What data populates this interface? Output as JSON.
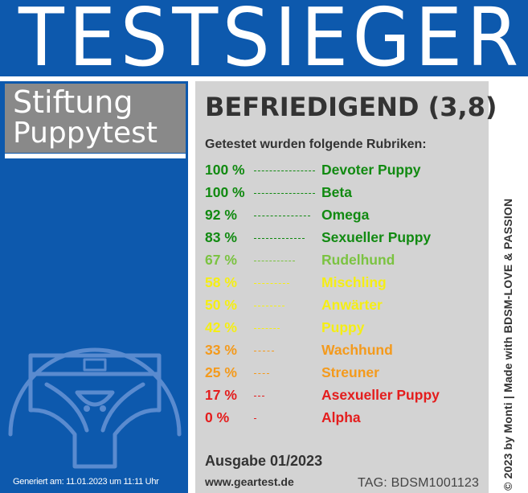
{
  "banner": {
    "title": "TESTSIEGER"
  },
  "brand": {
    "line1": "Stiftung",
    "line2": "Puppytest"
  },
  "footer_left": {
    "generated": "Generiert am: 11.01.2023 um 11:11 Uhr"
  },
  "result": {
    "rating": "BEFRIEDIGEND (3,8)",
    "subtitle": "Getestet wurden folgende Rubriken:",
    "rows": [
      {
        "percent_label": "100 %",
        "category": "Devoter Puppy",
        "value": 100,
        "color": "#118a11"
      },
      {
        "percent_label": "100 %",
        "category": "Beta",
        "value": 100,
        "color": "#118a11"
      },
      {
        "percent_label": "92 %",
        "category": "Omega",
        "value": 92,
        "color": "#118a11"
      },
      {
        "percent_label": "83 %",
        "category": "Sexueller Puppy",
        "value": 83,
        "color": "#118a11"
      },
      {
        "percent_label": "67 %",
        "category": "Rudelhund",
        "value": 67,
        "color": "#7bc341"
      },
      {
        "percent_label": "58 %",
        "category": "Mischling",
        "value": 58,
        "color": "#f5ee14"
      },
      {
        "percent_label": "50 %",
        "category": "Anwärter",
        "value": 50,
        "color": "#f5ee14"
      },
      {
        "percent_label": "42 %",
        "category": "Puppy",
        "value": 42,
        "color": "#f5ee14"
      },
      {
        "percent_label": "33 %",
        "category": "Wachhund",
        "value": 33,
        "color": "#f49a1c"
      },
      {
        "percent_label": "25 %",
        "category": "Streuner",
        "value": 25,
        "color": "#f49a1c"
      },
      {
        "percent_label": "17 %",
        "category": "Asexueller Puppy",
        "value": 17,
        "color": "#e41d1d"
      },
      {
        "percent_label": "0 %",
        "category": "Alpha",
        "value": 0,
        "color": "#e41d1d"
      }
    ],
    "issue": "Ausgabe 01/2023",
    "website": "www.geartest.de",
    "tag": "TAG: BDSM1001123"
  },
  "side_text": "© 2023 by Monti | Made with BDSM-LOVE & PASSION",
  "colors": {
    "brand_blue": "#0d59ad",
    "panel_gray": "#d3d3d3",
    "brand_gray": "#898989"
  },
  "icons": {
    "seal": "jockstrap-seal-icon"
  }
}
